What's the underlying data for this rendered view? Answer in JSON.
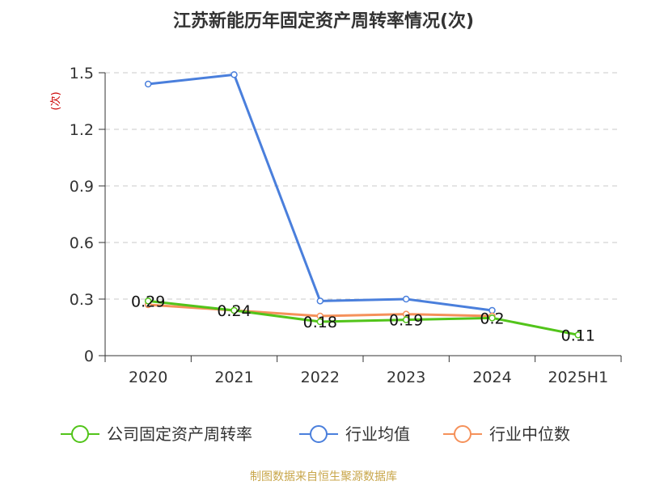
{
  "chart_data": {
    "type": "line",
    "title": "江苏新能历年固定资产周转率情况(次)",
    "ylabel": "(次)",
    "xlabel": "",
    "categories": [
      "2020",
      "2021",
      "2022",
      "2023",
      "2024",
      "2025H1"
    ],
    "ylim": [
      0,
      1.5
    ],
    "yticks": [
      "0",
      "0.3",
      "0.6",
      "0.9",
      "1.2",
      "1.5"
    ],
    "ytick_values": [
      0,
      0.3,
      0.6,
      0.9,
      1.2,
      1.5
    ],
    "grid": true,
    "legend_position": "bottom",
    "series": [
      {
        "name": "公司固定资产周转率",
        "color": "#52c41a",
        "values": [
          0.29,
          0.24,
          0.18,
          0.19,
          0.2,
          0.11
        ],
        "labels": [
          "0.29",
          "0.24",
          "0.18",
          "0.19",
          "0.2",
          "0.11"
        ]
      },
      {
        "name": "行业均值",
        "color": "#4a7fdc",
        "values": [
          1.44,
          1.49,
          0.29,
          0.3,
          0.24,
          null
        ]
      },
      {
        "name": "行业中位数",
        "color": "#f5915a",
        "values": [
          0.27,
          0.24,
          0.21,
          0.22,
          0.21,
          null
        ]
      }
    ]
  },
  "source": "制图数据来自恒生聚源数据库"
}
